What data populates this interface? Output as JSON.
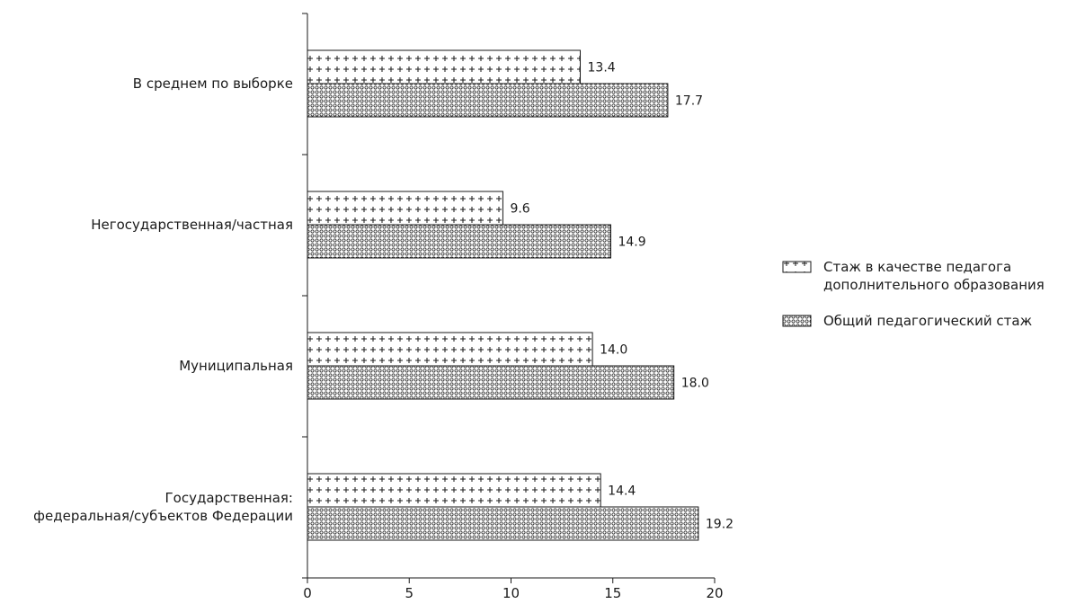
{
  "chart_data": {
    "type": "bar",
    "orientation": "horizontal",
    "categories": [
      [
        "В среднем по выборке"
      ],
      [
        "Негосударственная/частная"
      ],
      [
        "Муниципальная"
      ],
      [
        "Государственная:",
        "федеральная/субъектов Федерации"
      ]
    ],
    "series": [
      {
        "name": [
          "Стаж в качестве педагога",
          "дополнительного образования"
        ],
        "pattern": "plus",
        "values": [
          13.4,
          9.6,
          14.0,
          14.4
        ],
        "labels": [
          "13.4",
          "9.6",
          "14.0",
          "14.4"
        ]
      },
      {
        "name": [
          "Общий педагогический стаж"
        ],
        "pattern": "circles",
        "values": [
          17.7,
          14.9,
          18.0,
          19.2
        ],
        "labels": [
          "17.7",
          "14.9",
          "18.0",
          "19.2"
        ]
      }
    ],
    "xlim": [
      0,
      20
    ],
    "xticks": [
      0,
      5,
      10,
      15,
      20
    ],
    "xtick_labels": [
      "0",
      "5",
      "10",
      "15",
      "20"
    ],
    "grid": false,
    "legend_position": "right",
    "colors": {
      "ink": "#1a1a1a",
      "background": "#ffffff"
    }
  }
}
